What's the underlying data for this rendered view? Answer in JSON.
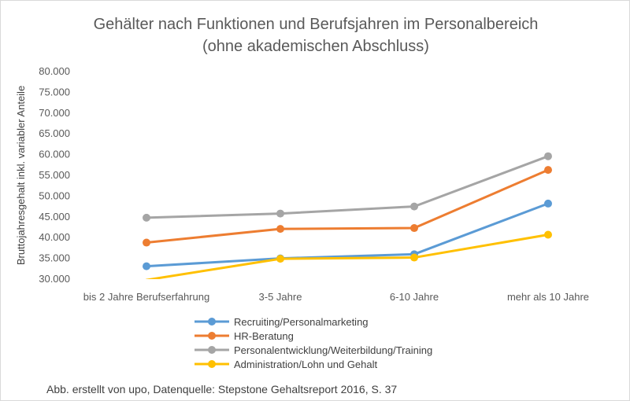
{
  "chart_data": {
    "type": "line",
    "title_lines": [
      "Gehälter nach Funktionen und Berufsjahren im Personalbereich",
      "(ohne akademischen Abschluss)"
    ],
    "ylabel": "Bruttojahresgehalt inkl. variabler Anteile",
    "xlabel": "",
    "categories": [
      "bis 2 Jahre Berufserfahrung",
      "3-5 Jahre",
      "6-10 Jahre",
      "mehr als 10 Jahre"
    ],
    "ylim": [
      30000,
      80000
    ],
    "ystep": 5000,
    "ytick_labels": [
      "30.000",
      "35.000",
      "40.000",
      "45.000",
      "50.000",
      "55.000",
      "60.000",
      "65.000",
      "70.000",
      "75.000",
      "80.000"
    ],
    "grid": false,
    "legend_position": "bottom",
    "series": [
      {
        "name": "Recruiting/Personalmarketing",
        "color": "#5B9BD5",
        "values": [
          33100,
          35000,
          36000,
          48200
        ]
      },
      {
        "name": "HR-Beratung",
        "color": "#ED7D31",
        "values": [
          38800,
          42100,
          42300,
          56300
        ]
      },
      {
        "name": "Personalentwicklung/Weiterbildung/Training",
        "color": "#A5A5A5",
        "values": [
          44800,
          45800,
          47500,
          59600
        ]
      },
      {
        "name": "Administration/Lohn und Gehalt",
        "color": "#FFC000",
        "values": [
          29800,
          34900,
          35200,
          40700
        ]
      }
    ]
  },
  "source_note": "Abb. erstellt von upo, Datenquelle: Stepstone Gehaltsreport 2016, S. 37"
}
